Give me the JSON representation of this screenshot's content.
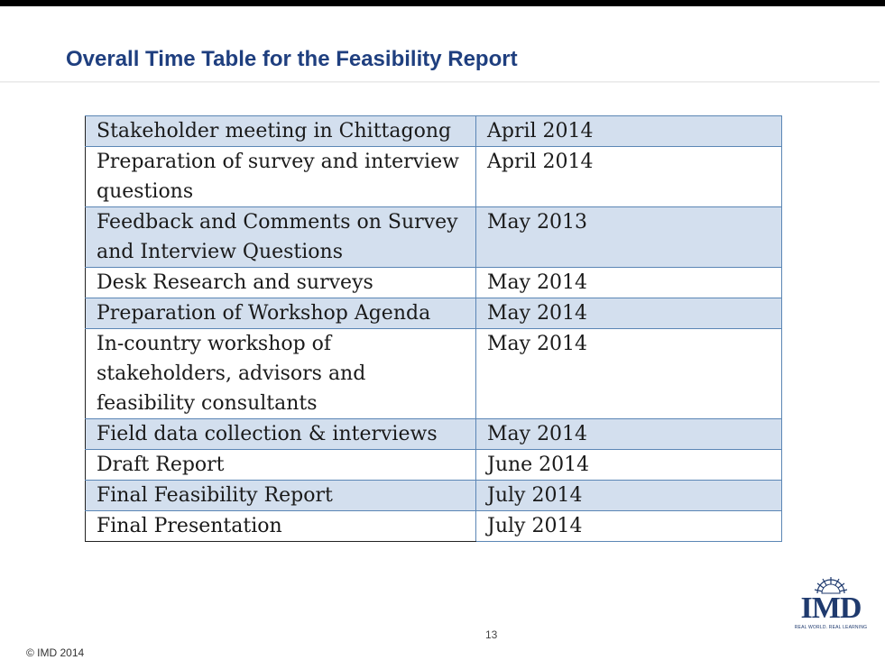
{
  "slide": {
    "title": "Overall Time Table for the Feasibility Report",
    "page_number": "13",
    "copyright": "© IMD 2014"
  },
  "logo": {
    "text": "IMD",
    "tagline": "REAL WORLD. REAL LEARNING",
    "icon": "sunburst-icon",
    "color": "#1f3a6e"
  },
  "colors": {
    "title": "#1f3f7f",
    "row_shade": "#d3dfee",
    "border": "#5b86b5"
  },
  "schedule": [
    {
      "task": "Stakeholder meeting in Chittagong",
      "date": "April 2014",
      "shaded": true
    },
    {
      "task": "Preparation of survey and interview questions",
      "date": "April 2014",
      "shaded": false
    },
    {
      "task": "Feedback and Comments on Survey and Interview Questions",
      "date": "May 2013",
      "shaded": true
    },
    {
      "task": "Desk Research and surveys",
      "date": "May 2014",
      "shaded": false
    },
    {
      "task": "Preparation of Workshop Agenda",
      "date": "May 2014",
      "shaded": true
    },
    {
      "task": "In-country workshop of stakeholders, advisors and feasibility consultants",
      "date": "May 2014",
      "shaded": false
    },
    {
      "task": "Field data collection & interviews",
      "date": "May 2014",
      "shaded": true
    },
    {
      "task": "Draft Report",
      "date": "June 2014",
      "shaded": false
    },
    {
      "task": "Final Feasibility Report",
      "date": "July 2014",
      "shaded": true
    },
    {
      "task": "Final Presentation",
      "date": "July 2014",
      "shaded": false
    }
  ]
}
